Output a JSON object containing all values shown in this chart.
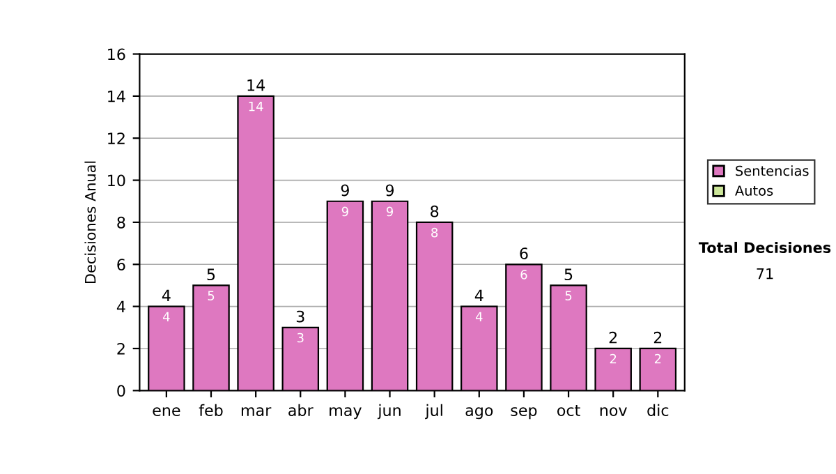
{
  "chart_data": {
    "type": "bar",
    "stacked": true,
    "ylabel": "Decisiones Anual",
    "categories": [
      "ene",
      "feb",
      "mar",
      "abr",
      "may",
      "jun",
      "jul",
      "ago",
      "sep",
      "oct",
      "nov",
      "dic"
    ],
    "series": [
      {
        "name": "Sentencias",
        "color": "#de78c0",
        "values": [
          4,
          5,
          14,
          3,
          9,
          9,
          8,
          4,
          6,
          5,
          2,
          2
        ],
        "value_labels": [
          "4",
          "5",
          "14",
          "3",
          "9",
          "9",
          "8",
          "4",
          "6",
          "5",
          "2",
          "2"
        ]
      },
      {
        "name": "Autos",
        "color": "#cce699",
        "values": [
          0,
          0,
          0,
          0,
          0,
          0,
          0,
          0,
          0,
          0,
          0,
          0
        ]
      }
    ],
    "totals": [
      "4",
      "5",
      "14",
      "3",
      "9",
      "9",
      "8",
      "4",
      "6",
      "5",
      "2",
      "2"
    ],
    "ylim": [
      0,
      16
    ],
    "yticks": [
      0,
      2,
      4,
      6,
      8,
      10,
      12,
      14,
      16
    ],
    "grid": "y",
    "legend": "right",
    "annotations": [
      "Total Decisiones",
      "71"
    ]
  }
}
